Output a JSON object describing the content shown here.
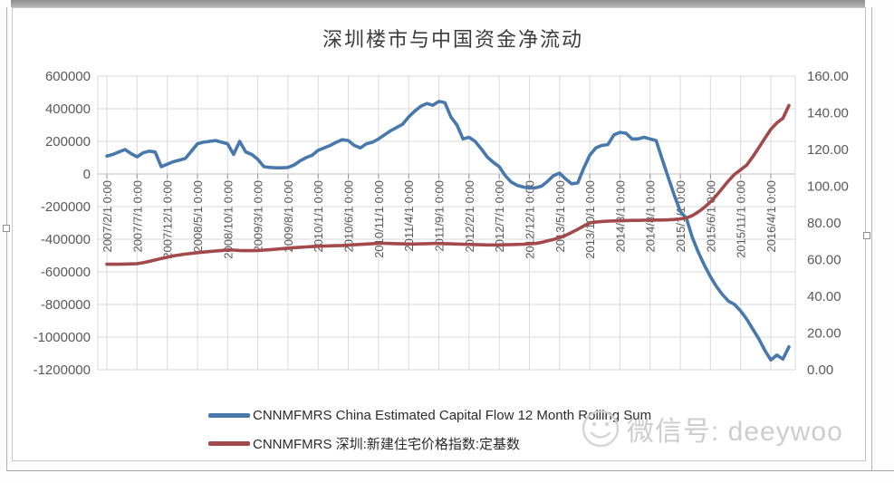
{
  "watermark": {
    "label": "微信号: deeywoo",
    "icon": "smiley-face"
  },
  "legend": {
    "position": "bottom"
  },
  "chart_data": {
    "type": "line",
    "title": "深圳楼市与中国资金净流动",
    "frequency": "monthly",
    "x_range": [
      "2007/2",
      "2016/7"
    ],
    "x_tick_step": 5,
    "x_tick_labels": [
      "2007/2/1 0:00",
      "2007/7/1 0:00",
      "2007/12/1 0:00",
      "2008/5/1 0:00",
      "2008/10/1 0:00",
      "2009/3/1 0:00",
      "2009/8/1 0:00",
      "2010/1/1 0:00",
      "2010/6/1 0:00",
      "2010/11/1 0:00",
      "2011/4/1 0:00",
      "2011/9/1 0:00",
      "2012/2/1 0:00",
      "2012/7/1 0:00",
      "2012/12/1 0:00",
      "2013/5/1 0:00",
      "2013/10/1 0:00",
      "2014/3/1 0:00",
      "2014/8/1 0:00",
      "2015/1/1 0:00",
      "2015/6/1 0:00",
      "2015/11/1 0:00",
      "2016/4/1 0:00"
    ],
    "left_axis": {
      "max": 600000,
      "min": -1200000,
      "ticks": [
        "600000",
        "400000",
        "200000",
        "0",
        "-200000",
        "-400000",
        "-600000",
        "-800000",
        "-1000000",
        "-1200000"
      ]
    },
    "right_axis": {
      "max": 160,
      "min": 0,
      "ticks": [
        "160.00",
        "140.00",
        "120.00",
        "100.00",
        "80.00",
        "60.00",
        "40.00",
        "20.00",
        "0.00"
      ]
    },
    "grid": true,
    "legend_position": "bottom",
    "series": [
      {
        "name": "CNNMFMRS China Estimated Capital Flow 12 Month Rolling Sum",
        "axis": "left",
        "color": "#4878AC",
        "values": [
          110000,
          120000,
          135000,
          150000,
          125000,
          105000,
          130000,
          140000,
          135000,
          45000,
          60000,
          75000,
          85000,
          95000,
          140000,
          185000,
          195000,
          200000,
          205000,
          195000,
          185000,
          120000,
          200000,
          135000,
          120000,
          90000,
          45000,
          40000,
          38000,
          38000,
          40000,
          55000,
          80000,
          100000,
          115000,
          145000,
          160000,
          175000,
          195000,
          210000,
          205000,
          175000,
          160000,
          185000,
          195000,
          215000,
          240000,
          265000,
          285000,
          305000,
          350000,
          385000,
          415000,
          432000,
          421000,
          445000,
          437000,
          350000,
          300000,
          215000,
          225000,
          200000,
          155000,
          105000,
          72000,
          45000,
          -10000,
          -50000,
          -70000,
          -80000,
          -85000,
          -85000,
          -75000,
          -45000,
          -10000,
          5000,
          -30000,
          -60000,
          -55000,
          35000,
          115000,
          160000,
          175000,
          180000,
          240000,
          255000,
          250000,
          215000,
          215000,
          225000,
          215000,
          205000,
          90000,
          -20000,
          -130000,
          -230000,
          -270000,
          -390000,
          -480000,
          -560000,
          -630000,
          -690000,
          -740000,
          -780000,
          -800000,
          -840000,
          -890000,
          -950000,
          -1010000,
          -1080000,
          -1140000,
          -1110000,
          -1135000,
          -1060000
        ]
      },
      {
        "name": "CNNMFMRS 深圳:新建住宅价格指数:定基数",
        "axis": "right",
        "color": "#A2494B",
        "values": [
          57.5,
          57.5,
          57.5,
          57.6,
          57.7,
          57.8,
          58.3,
          59.0,
          59.8,
          60.6,
          61.3,
          62.0,
          62.5,
          63.0,
          63.4,
          63.8,
          64.1,
          64.4,
          64.7,
          65.0,
          65.3,
          65.2,
          65.0,
          64.9,
          64.9,
          65.0,
          65.2,
          65.4,
          65.7,
          66.0,
          66.2,
          66.5,
          66.7,
          66.9,
          67.1,
          67.3,
          67.4,
          67.5,
          67.6,
          67.7,
          67.9,
          68.1,
          68.3,
          68.5,
          68.7,
          68.9,
          68.9,
          68.8,
          68.7,
          68.6,
          68.5,
          68.5,
          68.6,
          68.7,
          68.8,
          68.8,
          68.7,
          68.6,
          68.5,
          68.4,
          68.3,
          68.2,
          68.1,
          68.0,
          68.0,
          68.0,
          68.1,
          68.2,
          68.3,
          68.4,
          68.6,
          68.8,
          69.4,
          70.2,
          71.0,
          72.0,
          73.2,
          74.8,
          76.5,
          78.3,
          80.0,
          80.5,
          80.8,
          81.0,
          81.1,
          81.2,
          81.3,
          81.4,
          81.4,
          81.5,
          81.5,
          81.6,
          81.6,
          81.7,
          81.9,
          82.2,
          82.7,
          84.0,
          86.0,
          88.5,
          91.5,
          95.0,
          99.0,
          103.0,
          106.5,
          109.0,
          111.5,
          116.0,
          121.0,
          126.0,
          131.0,
          134.5,
          137.0,
          144.0
        ]
      }
    ]
  }
}
